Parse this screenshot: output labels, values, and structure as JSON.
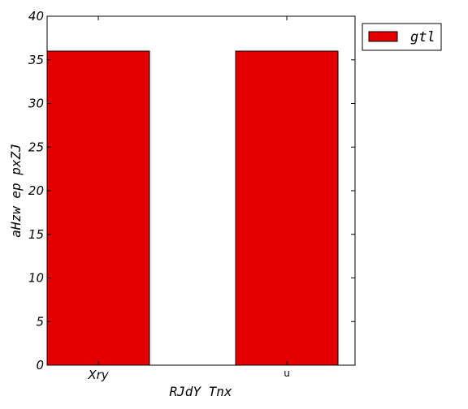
{
  "chart_data": {
    "type": "bar",
    "categories": [
      "Xry",
      "u"
    ],
    "series": [
      {
        "name": "gtl",
        "values": [
          36,
          36
        ],
        "color": "#e50000"
      }
    ],
    "xlabel": "RJdY Tnx",
    "ylabel": "aHzw ep pxZJ",
    "ylim": [
      0,
      40
    ],
    "yticks": [
      0,
      5,
      10,
      15,
      20,
      25,
      30,
      35,
      40
    ],
    "yticklabels": [
      "0",
      "5",
      "10",
      "15",
      "20",
      "25",
      "30",
      "35",
      "40"
    ],
    "grid": false,
    "legend": "outside-top-right"
  }
}
